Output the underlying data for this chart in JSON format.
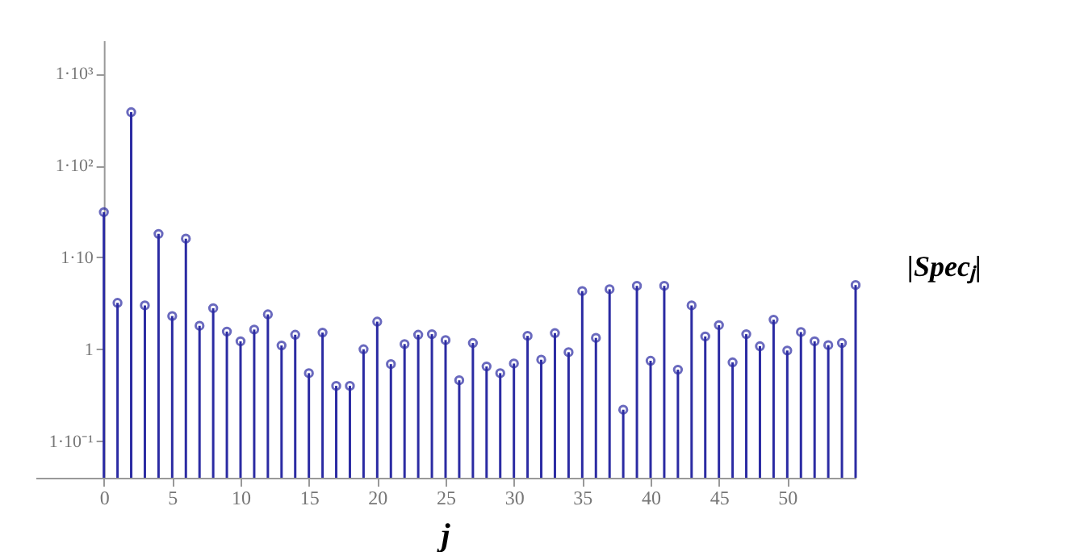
{
  "chart_data": {
    "type": "lollipop",
    "xlabel": "j",
    "ylabel": "|Specⱼ|",
    "x": [
      0,
      1,
      2,
      3,
      4,
      5,
      6,
      7,
      8,
      9,
      10,
      11,
      12,
      13,
      14,
      15,
      16,
      17,
      18,
      19,
      20,
      21,
      22,
      23,
      24,
      25,
      26,
      27,
      28,
      29,
      30,
      31,
      32,
      33,
      34,
      35,
      36,
      37,
      38,
      39,
      40,
      41,
      42,
      43,
      44,
      45,
      46,
      47,
      48,
      49,
      50,
      51,
      52,
      53,
      54,
      55
    ],
    "values": [
      31,
      3.2,
      380,
      3.0,
      18,
      2.3,
      16,
      1.8,
      2.8,
      1.56,
      1.22,
      1.64,
      2.4,
      1.1,
      1.44,
      0.55,
      1.52,
      0.4,
      0.4,
      1.0,
      2.0,
      0.69,
      1.14,
      1.44,
      1.46,
      1.26,
      0.46,
      1.17,
      0.65,
      0.55,
      0.7,
      1.4,
      0.77,
      1.5,
      0.93,
      4.3,
      1.33,
      4.5,
      0.22,
      4.9,
      0.75,
      4.9,
      0.6,
      3.0,
      1.38,
      1.83,
      0.72,
      1.46,
      1.08,
      2.1,
      0.97,
      1.54,
      1.22,
      1.11,
      1.17,
      5.0
    ],
    "color": "#2b2ba3",
    "marker": "circle",
    "log": "y",
    "grid": false,
    "xlim": [
      -5,
      55
    ],
    "xticks": [
      0,
      5,
      10,
      15,
      20,
      25,
      30,
      35,
      40,
      45,
      50
    ],
    "ylim": [
      0.04,
      2300
    ],
    "yticks": [
      {
        "value": 0.1,
        "label": "1·10⁻¹"
      },
      1,
      {
        "value": 10,
        "label": "1·10"
      },
      {
        "value": 100,
        "label": "1·10²"
      },
      {
        "value": 1000,
        "label": "1·10³"
      }
    ]
  }
}
